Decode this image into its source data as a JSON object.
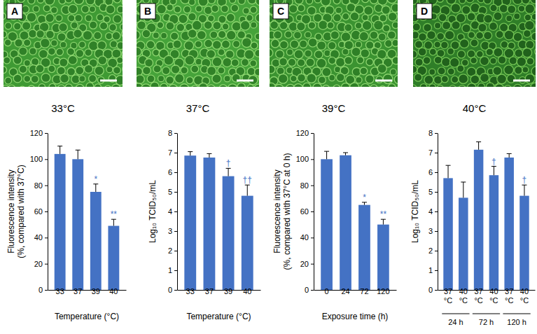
{
  "images": [
    {
      "label": "A",
      "caption": "33°C"
    },
    {
      "label": "B",
      "caption": "37°C"
    },
    {
      "label": "C",
      "caption": "39°C"
    },
    {
      "label": "D",
      "caption": "40°C"
    }
  ],
  "chart_data": [
    {
      "type": "bar",
      "color": "#4472c4",
      "xlabel": "Temperature (°C)",
      "ylabel": "Fluorescence intensity\n(%, compared with 37°C)",
      "categories": [
        "33",
        "37",
        "39",
        "40"
      ],
      "values": [
        104,
        100,
        75,
        49
      ],
      "errors": [
        6,
        7,
        6,
        5
      ],
      "annotations": [
        null,
        null,
        "*",
        "**"
      ],
      "ylim": [
        0,
        120
      ],
      "yticks": [
        0,
        20,
        40,
        60,
        80,
        100,
        120
      ]
    },
    {
      "type": "bar",
      "color": "#4472c4",
      "xlabel": "Temperature (°C)",
      "ylabel": "Log₁₀ TCID₅₀/mL",
      "categories": [
        "33",
        "37",
        "39",
        "40"
      ],
      "values": [
        6.85,
        6.75,
        5.8,
        4.8
      ],
      "errors": [
        0.2,
        0.2,
        0.4,
        0.55
      ],
      "annotations": [
        null,
        null,
        "†",
        "††"
      ],
      "ylim": [
        0,
        8
      ],
      "yticks": [
        0,
        1,
        2,
        3,
        4,
        5,
        6,
        7,
        8
      ]
    },
    {
      "type": "bar",
      "color": "#4472c4",
      "xlabel": "Exposure time (h)",
      "ylabel": "Fluorescence intensity\n(%, compared with 37°C at 0 h)",
      "categories": [
        "0",
        "24",
        "72",
        "120"
      ],
      "values": [
        100,
        103,
        65,
        50
      ],
      "errors": [
        6,
        2,
        2,
        4
      ],
      "annotations": [
        null,
        null,
        "*",
        "**"
      ],
      "ylim": [
        0,
        120
      ],
      "yticks": [
        0,
        20,
        40,
        60,
        80,
        100,
        120
      ]
    },
    {
      "type": "bar",
      "color": "#4472c4",
      "ylabel": "Log₁₀ TCID₅₀/mL",
      "categories": [
        "37\n°C",
        "40\n°C",
        "37\n°C",
        "40\n°C",
        "37\n°C",
        "40\n°C"
      ],
      "groups": [
        "24 h",
        "72 h",
        "120 h"
      ],
      "values": [
        5.7,
        4.7,
        7.15,
        5.85,
        6.75,
        4.8
      ],
      "errors": [
        0.65,
        0.8,
        0.4,
        0.45,
        0.2,
        0.55
      ],
      "annotations": [
        null,
        null,
        null,
        "†",
        null,
        "†"
      ],
      "ylim": [
        0,
        8
      ],
      "yticks": [
        0,
        1,
        2,
        3,
        4,
        5,
        6,
        7,
        8
      ]
    }
  ]
}
